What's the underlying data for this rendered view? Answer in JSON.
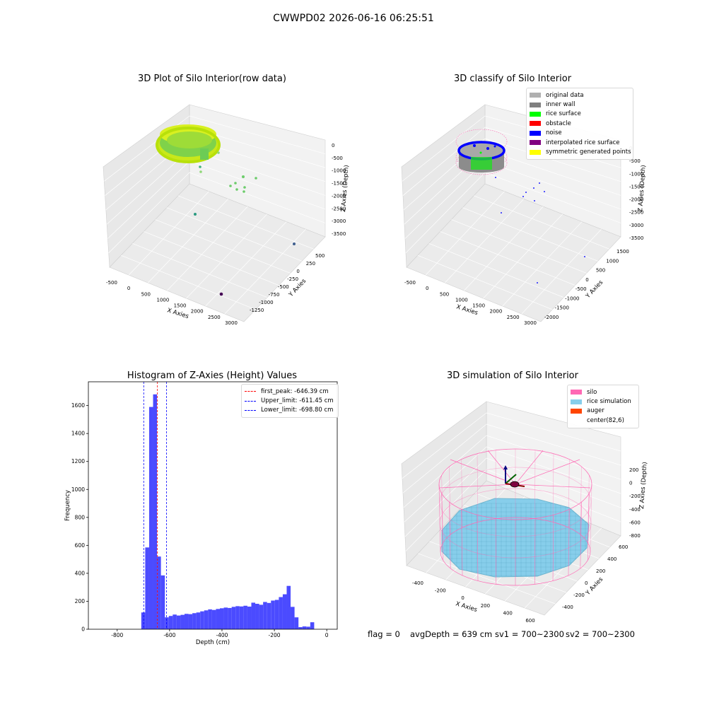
{
  "suptitle": "CWWPD02 2026-06-16 06:25:51",
  "panels": {
    "raw": {
      "title": "3D Plot of Silo Interior(row data)",
      "xlabel": "X Axies",
      "ylabel": "Y Axies",
      "zlabel": "Z Axies (Depth)",
      "xticks": [
        "-500",
        "0",
        "500",
        "1000",
        "1500",
        "2000",
        "2500",
        "3000"
      ],
      "yticks": [
        "500",
        "250",
        "0",
        "-250",
        "-500",
        "-750",
        "-1000",
        "-1250"
      ],
      "zticks": [
        "0",
        "-500",
        "-1000",
        "-1500",
        "-2000",
        "-2500",
        "-3000",
        "-3500"
      ]
    },
    "classify": {
      "title": "3D classify of Silo Interior",
      "xlabel": "X Axies",
      "ylabel": "Y Axies",
      "zlabel": "Z Axies (Depth)",
      "xticks": [
        "-500",
        "0",
        "500",
        "1000",
        "1500",
        "2000",
        "2500",
        "3000"
      ],
      "yticks": [
        "1500",
        "1000",
        "500",
        "0",
        "-500",
        "-1000",
        "-1500",
        "-2000"
      ],
      "zticks": [
        "0",
        "-500",
        "-1000",
        "-1500",
        "-2000",
        "-2500",
        "-3000",
        "-3500"
      ],
      "legend": [
        {
          "label": "original data",
          "color": "#b0b0b0"
        },
        {
          "label": "inner wall",
          "color": "#808080"
        },
        {
          "label": "rice surface",
          "color": "#00ff00"
        },
        {
          "label": "obstacle",
          "color": "#ff0000"
        },
        {
          "label": "noise",
          "color": "#0000ff"
        },
        {
          "label": "interpolated rice surface",
          "color": "#800080"
        },
        {
          "label": "symmetric generated points",
          "color": "#ffff00"
        }
      ]
    },
    "simulation": {
      "title": "3D simulation of Silo Interior",
      "xlabel": "X Axies",
      "ylabel": "Y Axies",
      "zlabel": "Z Axies (Depth)",
      "xticks": [
        "-400",
        "-200",
        "0",
        "200",
        "400",
        "600"
      ],
      "yticks": [
        "600",
        "400",
        "200",
        "0",
        "-200",
        "-400"
      ],
      "zticks": [
        "200",
        "0",
        "-200",
        "-400",
        "-600",
        "-800"
      ],
      "legend": [
        {
          "label": "silo",
          "color": "#ff69b4"
        },
        {
          "label": "rice simulation",
          "color": "#87ceeb"
        },
        {
          "label": "auger",
          "color": "#ff4500"
        },
        {
          "label": "center(82,6)",
          "color": ""
        }
      ]
    }
  },
  "chart_data": {
    "type": "bar",
    "title": "Histogram of Z-Axies (Height) Values",
    "xlabel": "Depth (cm)",
    "ylabel": "Frequency",
    "xlim": [
      -910,
      40
    ],
    "ylim": [
      0,
      1770
    ],
    "xticks": [
      -800,
      -600,
      -400,
      -200,
      0
    ],
    "yticks": [
      0,
      200,
      400,
      600,
      800,
      1000,
      1200,
      1400,
      1600
    ],
    "bin_width": 15,
    "bins": [
      [
        -708,
        120
      ],
      [
        -693,
        585
      ],
      [
        -678,
        1590
      ],
      [
        -663,
        1680
      ],
      [
        -648,
        520
      ],
      [
        -633,
        385
      ],
      [
        -618,
        85
      ],
      [
        -603,
        95
      ],
      [
        -588,
        105
      ],
      [
        -573,
        98
      ],
      [
        -558,
        103
      ],
      [
        -543,
        110
      ],
      [
        -528,
        108
      ],
      [
        -513,
        115
      ],
      [
        -498,
        120
      ],
      [
        -483,
        128
      ],
      [
        -468,
        135
      ],
      [
        -453,
        142
      ],
      [
        -438,
        138
      ],
      [
        -423,
        145
      ],
      [
        -408,
        150
      ],
      [
        -393,
        155
      ],
      [
        -378,
        152
      ],
      [
        -363,
        160
      ],
      [
        -348,
        165
      ],
      [
        -333,
        163
      ],
      [
        -318,
        168
      ],
      [
        -303,
        162
      ],
      [
        -288,
        190
      ],
      [
        -273,
        182
      ],
      [
        -258,
        175
      ],
      [
        -243,
        195
      ],
      [
        -228,
        188
      ],
      [
        -213,
        205
      ],
      [
        -198,
        210
      ],
      [
        -183,
        230
      ],
      [
        -168,
        250
      ],
      [
        -153,
        310
      ],
      [
        -138,
        160
      ],
      [
        -123,
        85
      ],
      [
        -108,
        15
      ],
      [
        -93,
        20
      ],
      [
        -78,
        18
      ],
      [
        -63,
        50
      ]
    ],
    "vlines": [
      {
        "label": "first_peak: -646.39 cm",
        "x": -646.39,
        "color": "#ff0000"
      },
      {
        "label": "Upper_limit: -611.45 cm",
        "x": -611.45,
        "color": "#0000ff"
      },
      {
        "label": "Lower_limit: -698.80 cm",
        "x": -698.8,
        "color": "#0000ff"
      }
    ],
    "legend_position": "upper right",
    "bar_color": "#4b4bff"
  },
  "status": {
    "flag": "flag = 0",
    "avg": "avgDepth = 639 cm",
    "sv1": "sv1 = 700~2300",
    "sv2": "sv2 = 700~2300"
  }
}
